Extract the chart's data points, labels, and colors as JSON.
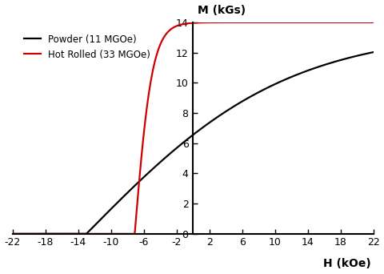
{
  "xlabel": "H (kOe)",
  "ylabel": "M (kGs)",
  "xlim": [
    -22,
    22
  ],
  "ylim": [
    0,
    14
  ],
  "xticks": [
    -22,
    -18,
    -14,
    -10,
    -6,
    -2,
    2,
    6,
    10,
    14,
    18,
    22
  ],
  "yticks": [
    0,
    2,
    4,
    6,
    8,
    10,
    12,
    14
  ],
  "legend_powder": "Powder (11 MGOe)",
  "legend_hot_rolled": "Hot Rolled (33 MGOe)",
  "powder_color": "#000000",
  "hot_rolled_color": "#cc0000",
  "background_color": "#ffffff",
  "powder_params": {
    "Ms": 13.5,
    "Hc": 13.0,
    "n": 0.55
  },
  "hot_rolled_params": {
    "Ms": 14.0,
    "Hc": 7.1,
    "n": 6.5
  }
}
